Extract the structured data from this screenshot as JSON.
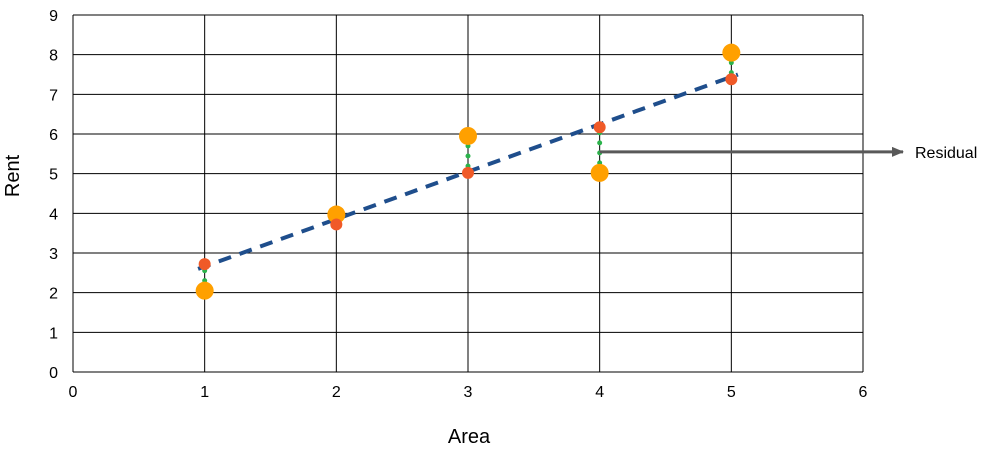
{
  "chart_data": {
    "type": "scatter",
    "xlabel": "Area",
    "ylabel": "Rent",
    "xlim": [
      0,
      6
    ],
    "ylim": [
      0,
      9
    ],
    "x_ticks": [
      "0",
      "1",
      "2",
      "3",
      "4",
      "5",
      "6"
    ],
    "y_ticks": [
      "0",
      "1",
      "2",
      "3",
      "4",
      "5",
      "6",
      "7",
      "8",
      "9"
    ],
    "grid": true,
    "series": [
      {
        "role": "actual",
        "marker": "large orange circle",
        "color": "#FFA000",
        "points": [
          {
            "x": 1,
            "y": 2.05
          },
          {
            "x": 2,
            "y": 3.97
          },
          {
            "x": 3,
            "y": 5.95
          },
          {
            "x": 4,
            "y": 5.02
          },
          {
            "x": 5,
            "y": 8.05
          }
        ]
      },
      {
        "role": "predicted",
        "marker": "small red circle",
        "color": "#F05A28",
        "points": [
          {
            "x": 1,
            "y": 2.72
          },
          {
            "x": 2,
            "y": 3.72
          },
          {
            "x": 3,
            "y": 5.02
          },
          {
            "x": 4,
            "y": 6.17
          },
          {
            "x": 5,
            "y": 7.38
          }
        ]
      }
    ],
    "regression_line": {
      "style": "dashed",
      "color": "#1F4E8C",
      "from": {
        "x": 0.95,
        "y": 2.6
      },
      "to": {
        "x": 5.05,
        "y": 7.5
      }
    },
    "residuals": {
      "style": "dotted",
      "color": "#2BB34B"
    },
    "annotation": {
      "text": "Residual",
      "arrow_from": {
        "x": 4,
        "y": 5.55
      },
      "color": "#595959"
    }
  }
}
